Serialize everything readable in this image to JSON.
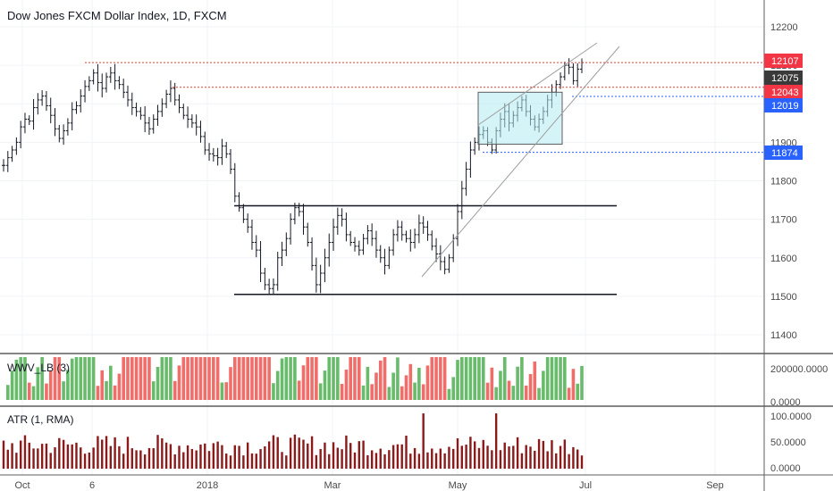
{
  "chart_data": {
    "type": "bar",
    "title": "Dow Jones FXCM Dollar Index, 1D, FXCM",
    "price_axis": {
      "range": [
        11320,
        12280
      ],
      "ticks": [
        "12200",
        "12100",
        "12000",
        "11900",
        "11800",
        "11700",
        "11600",
        "11500",
        "11400"
      ],
      "tick_values": [
        12200,
        12100,
        12000,
        11900,
        11800,
        11700,
        11600,
        11500,
        11400
      ]
    },
    "time_axis": {
      "labels": [
        "Oct",
        "6",
        "2018",
        "Mar",
        "May",
        "Jul",
        "Sep"
      ]
    },
    "price_badges": [
      {
        "text": "12107",
        "value": 12107,
        "color": "#f23645"
      },
      {
        "text": "12075",
        "value": 12075,
        "color": "#3a3a3a"
      },
      {
        "text": "12043",
        "value": 12043,
        "color": "#f23645"
      },
      {
        "text": "12019",
        "value": 12019,
        "color": "#2962ff"
      },
      {
        "text": "11874",
        "value": 11874,
        "color": "#2962ff"
      }
    ],
    "levels": [
      {
        "name": "resistance-high",
        "value": 12107,
        "style": "dotted",
        "color": "#e53935"
      },
      {
        "name": "resistance-2",
        "value": 12043,
        "style": "dotted",
        "color": "#e53935"
      },
      {
        "name": "support-blue-1",
        "value": 12019,
        "style": "dotted",
        "color": "#2962ff"
      },
      {
        "name": "support-blue-2",
        "value": 11874,
        "style": "dotted",
        "color": "#2962ff"
      },
      {
        "name": "range-top",
        "value": 11735,
        "style": "solid",
        "color": "#131722"
      },
      {
        "name": "range-bottom",
        "value": 11505,
        "style": "solid",
        "color": "#131722"
      }
    ],
    "price_bars_close": [
      11840,
      11860,
      11880,
      11900,
      11940,
      11960,
      11955,
      11990,
      12010,
      12020,
      11995,
      11970,
      11935,
      11910,
      11930,
      11950,
      11985,
      11995,
      12020,
      12045,
      12060,
      12080,
      12055,
      12040,
      12070,
      12080,
      12060,
      12050,
      12030,
      12010,
      11990,
      11980,
      11970,
      11950,
      11935,
      11960,
      11980,
      12000,
      12025,
      12040,
      12010,
      11990,
      11970,
      11960,
      11950,
      11940,
      11915,
      11880,
      11870,
      11865,
      11860,
      11890,
      11870,
      11830,
      11760,
      11730,
      11700,
      11680,
      11640,
      11620,
      11560,
      11530,
      11520,
      11530,
      11600,
      11620,
      11650,
      11700,
      11730,
      11720,
      11680,
      11640,
      11580,
      11530,
      11560,
      11600,
      11640,
      11680,
      11710,
      11700,
      11660,
      11640,
      11630,
      11620,
      11650,
      11670,
      11650,
      11620,
      11600,
      11580,
      11620,
      11660,
      11680,
      11660,
      11650,
      11640,
      11660,
      11690,
      11680,
      11660,
      11630,
      11610,
      11590,
      11570,
      11600,
      11650,
      11720,
      11780,
      11830,
      11880,
      11900,
      11920,
      11930,
      11900,
      11880,
      11930,
      11960,
      11980,
      11950,
      11970,
      11990,
      12010,
      11980,
      11960,
      11940,
      11960,
      11980,
      12010,
      12030,
      12050,
      12070,
      12100,
      12095,
      12060,
      12090,
      12107
    ],
    "wwv_lb": {
      "label": "WWV_LB (3)",
      "axis_ticks": [
        "200000.0000",
        "0.0000"
      ],
      "range": [
        0,
        240000
      ]
    },
    "atr": {
      "label": "ATR (1, RMA)",
      "axis_ticks": [
        "100.0000",
        "50.0000",
        "0.0000"
      ],
      "range": [
        0,
        110
      ]
    }
  }
}
